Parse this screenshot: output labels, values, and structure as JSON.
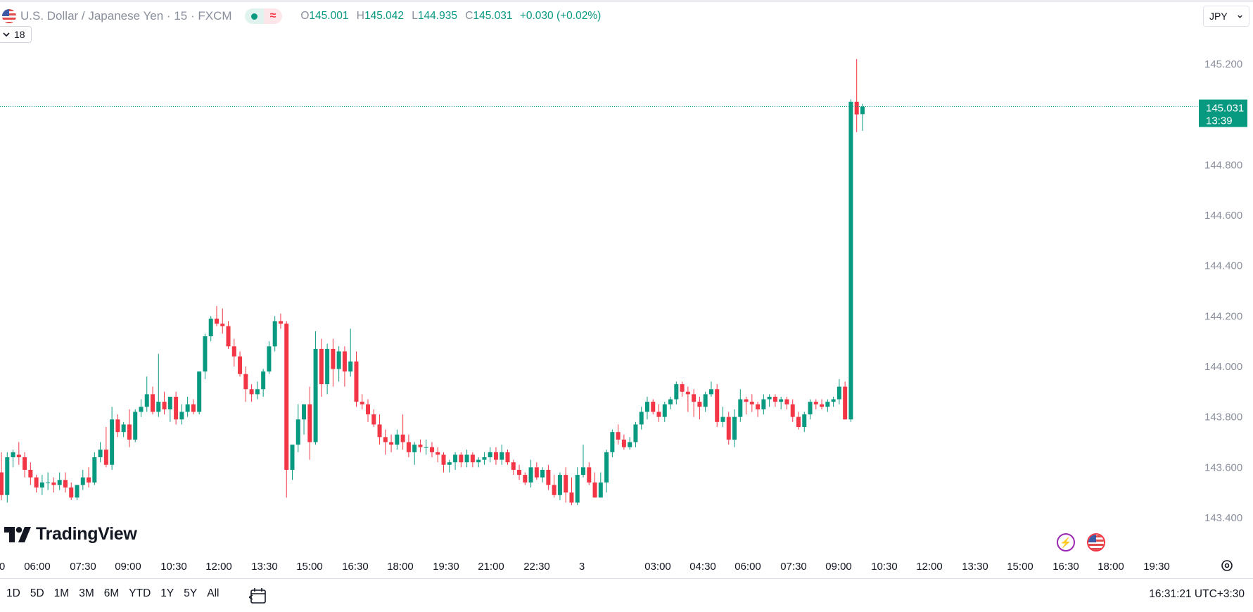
{
  "legend": {
    "symbol_name": "U.S. Dollar / Japanese Yen",
    "separator": "·",
    "interval": "15",
    "exchange": "FXCM",
    "market_status_wave": "≈",
    "open_key": "O",
    "open": "145.001",
    "high_key": "H",
    "high": "145.042",
    "low_key": "L",
    "low": "144.935",
    "close_key": "C",
    "close": "145.031",
    "change": "+0.030 (+0.02%)"
  },
  "indicators_toggle": {
    "count": "18"
  },
  "currency_select": {
    "value": "JPY"
  },
  "price_marker": {
    "price": "145.031",
    "countdown": "13:39"
  },
  "logo": {
    "text": "TradingView"
  },
  "range_buttons": [
    "1D",
    "5D",
    "1M",
    "3M",
    "6M",
    "YTD",
    "1Y",
    "5Y",
    "All"
  ],
  "clock": "16:31:21 UTC+3:30",
  "colors": {
    "up": "#089981",
    "down": "#f23645",
    "grid_text": "#8a8f9c",
    "text": "#131722"
  },
  "chart_data": {
    "type": "candlestick",
    "symbol": "USDJPY",
    "interval": "15",
    "ylim": [
      143.3,
      145.3
    ],
    "yticks": [
      "145.200",
      "144.800",
      "144.600",
      "144.400",
      "144.200",
      "144.000",
      "143.800",
      "143.600",
      "143.400"
    ],
    "xticks": [
      "0",
      "06:00",
      "07:30",
      "09:00",
      "10:30",
      "12:00",
      "13:30",
      "15:00",
      "16:30",
      "18:00",
      "19:30",
      "21:00",
      "22:30",
      "3",
      "03:00",
      "04:30",
      "06:00",
      "07:30",
      "09:00",
      "10:30",
      "12:00",
      "13:30",
      "15:00",
      "16:30",
      "18:00",
      "19:30"
    ],
    "last_price": 145.031,
    "candles": [
      [
        143.58,
        143.66,
        143.47,
        143.49
      ],
      [
        143.49,
        143.66,
        143.46,
        143.64
      ],
      [
        143.64,
        143.67,
        143.6,
        143.66
      ],
      [
        143.65,
        143.7,
        143.61,
        143.64
      ],
      [
        143.64,
        143.66,
        143.56,
        143.59
      ],
      [
        143.59,
        143.62,
        143.53,
        143.56
      ],
      [
        143.56,
        143.57,
        143.5,
        143.52
      ],
      [
        143.52,
        143.57,
        143.49,
        143.54
      ],
      [
        143.54,
        143.58,
        143.51,
        143.54
      ],
      [
        143.54,
        143.56,
        143.5,
        143.53
      ],
      [
        143.53,
        143.58,
        143.51,
        143.55
      ],
      [
        143.55,
        143.58,
        143.5,
        143.52
      ],
      [
        143.52,
        143.54,
        143.47,
        143.48
      ],
      [
        143.48,
        143.53,
        143.47,
        143.53
      ],
      [
        143.53,
        143.59,
        143.51,
        143.56
      ],
      [
        143.56,
        143.6,
        143.52,
        143.54
      ],
      [
        143.54,
        143.66,
        143.53,
        143.64
      ],
      [
        143.64,
        143.7,
        143.62,
        143.67
      ],
      [
        143.67,
        143.76,
        143.6,
        143.61
      ],
      [
        143.61,
        143.84,
        143.59,
        143.79
      ],
      [
        143.79,
        143.81,
        143.72,
        143.74
      ],
      [
        143.74,
        143.78,
        143.72,
        143.77
      ],
      [
        143.77,
        143.83,
        143.68,
        143.71
      ],
      [
        143.71,
        143.83,
        143.7,
        143.82
      ],
      [
        143.82,
        143.87,
        143.8,
        143.84
      ],
      [
        143.84,
        143.96,
        143.82,
        143.89
      ],
      [
        143.89,
        143.92,
        143.81,
        143.82
      ],
      [
        143.82,
        144.05,
        143.8,
        143.86
      ],
      [
        143.86,
        143.9,
        143.81,
        143.83
      ],
      [
        143.83,
        143.88,
        143.78,
        143.88
      ],
      [
        143.88,
        143.9,
        143.77,
        143.79
      ],
      [
        143.79,
        143.85,
        143.77,
        143.82
      ],
      [
        143.82,
        143.88,
        143.8,
        143.85
      ],
      [
        143.85,
        143.87,
        143.81,
        143.82
      ],
      [
        143.82,
        143.98,
        143.81,
        143.98
      ],
      [
        143.98,
        144.13,
        143.95,
        144.12
      ],
      [
        144.12,
        144.2,
        144.1,
        144.19
      ],
      [
        144.19,
        144.24,
        144.16,
        144.17
      ],
      [
        144.17,
        144.23,
        144.13,
        144.16
      ],
      [
        144.16,
        144.18,
        144.07,
        144.08
      ],
      [
        144.08,
        144.11,
        144.0,
        144.04
      ],
      [
        144.04,
        144.06,
        143.96,
        143.97
      ],
      [
        143.97,
        144.0,
        143.86,
        143.91
      ],
      [
        143.91,
        143.93,
        143.86,
        143.89
      ],
      [
        143.89,
        143.94,
        143.87,
        143.91
      ],
      [
        143.91,
        143.99,
        143.88,
        143.98
      ],
      [
        143.98,
        144.1,
        143.97,
        144.08
      ],
      [
        144.08,
        144.2,
        144.06,
        144.18
      ],
      [
        144.18,
        144.21,
        144.15,
        144.17
      ],
      [
        144.17,
        144.18,
        143.48,
        143.59
      ],
      [
        143.59,
        143.69,
        143.55,
        143.69
      ],
      [
        143.69,
        143.85,
        143.66,
        143.79
      ],
      [
        143.79,
        143.85,
        143.73,
        143.85
      ],
      [
        143.85,
        143.92,
        143.63,
        143.7
      ],
      [
        143.7,
        144.14,
        143.69,
        144.07
      ],
      [
        144.07,
        144.11,
        143.88,
        143.93
      ],
      [
        143.93,
        144.09,
        143.89,
        144.07
      ],
      [
        144.07,
        144.11,
        143.92,
        143.99
      ],
      [
        143.99,
        144.08,
        143.94,
        144.06
      ],
      [
        144.06,
        144.08,
        143.92,
        143.98
      ],
      [
        143.98,
        144.15,
        143.96,
        144.02
      ],
      [
        144.02,
        144.06,
        143.84,
        143.86
      ],
      [
        143.86,
        143.89,
        143.83,
        143.85
      ],
      [
        143.85,
        143.87,
        143.78,
        143.81
      ],
      [
        143.81,
        143.83,
        143.76,
        143.77
      ],
      [
        143.77,
        143.81,
        143.69,
        143.72
      ],
      [
        143.72,
        143.75,
        143.65,
        143.7
      ],
      [
        143.7,
        143.73,
        143.66,
        143.69
      ],
      [
        143.69,
        143.75,
        143.67,
        143.73
      ],
      [
        143.73,
        143.81,
        143.67,
        143.7
      ],
      [
        143.7,
        143.73,
        143.64,
        143.66
      ],
      [
        143.66,
        143.7,
        143.61,
        143.69
      ],
      [
        143.69,
        143.71,
        143.66,
        143.68
      ],
      [
        143.68,
        143.71,
        143.65,
        143.68
      ],
      [
        143.68,
        143.7,
        143.64,
        143.66
      ],
      [
        143.66,
        143.68,
        143.62,
        143.65
      ],
      [
        143.65,
        143.66,
        143.58,
        143.61
      ],
      [
        143.61,
        143.63,
        143.58,
        143.62
      ],
      [
        143.62,
        143.66,
        143.59,
        143.65
      ],
      [
        143.65,
        143.66,
        143.6,
        143.62
      ],
      [
        143.62,
        143.67,
        143.6,
        143.65
      ],
      [
        143.65,
        143.66,
        143.6,
        143.62
      ],
      [
        143.62,
        143.64,
        143.6,
        143.63
      ],
      [
        143.63,
        143.66,
        143.61,
        143.64
      ],
      [
        143.64,
        143.68,
        143.62,
        143.66
      ],
      [
        143.66,
        143.68,
        143.61,
        143.63
      ],
      [
        143.63,
        143.69,
        143.61,
        143.66
      ],
      [
        143.66,
        143.67,
        143.61,
        143.62
      ],
      [
        143.62,
        143.63,
        143.57,
        143.59
      ],
      [
        143.59,
        143.61,
        143.55,
        143.57
      ],
      [
        143.57,
        143.58,
        143.53,
        143.54
      ],
      [
        143.54,
        143.63,
        143.52,
        143.6
      ],
      [
        143.6,
        143.62,
        143.55,
        143.56
      ],
      [
        143.56,
        143.6,
        143.54,
        143.59
      ],
      [
        143.59,
        143.61,
        143.51,
        143.53
      ],
      [
        143.53,
        143.57,
        143.48,
        143.49
      ],
      [
        143.49,
        143.58,
        143.47,
        143.57
      ],
      [
        143.57,
        143.6,
        143.46,
        143.5
      ],
      [
        143.5,
        143.56,
        143.45,
        143.46
      ],
      [
        143.46,
        143.6,
        143.45,
        143.57
      ],
      [
        143.57,
        143.69,
        143.56,
        143.6
      ],
      [
        143.6,
        143.62,
        143.53,
        143.54
      ],
      [
        143.54,
        143.58,
        143.48,
        143.48
      ],
      [
        143.48,
        143.58,
        143.48,
        143.54
      ],
      [
        143.54,
        143.67,
        143.5,
        143.66
      ],
      [
        143.66,
        143.75,
        143.64,
        143.74
      ],
      [
        143.74,
        143.77,
        143.69,
        143.71
      ],
      [
        143.71,
        143.73,
        143.67,
        143.68
      ],
      [
        143.68,
        143.72,
        143.67,
        143.7
      ],
      [
        143.7,
        143.78,
        143.68,
        143.77
      ],
      [
        143.77,
        143.84,
        143.75,
        143.82
      ],
      [
        143.82,
        143.88,
        143.79,
        143.86
      ],
      [
        143.86,
        143.87,
        143.81,
        143.82
      ],
      [
        143.82,
        143.85,
        143.78,
        143.8
      ],
      [
        143.8,
        143.86,
        143.78,
        143.85
      ],
      [
        143.85,
        143.88,
        143.83,
        143.87
      ],
      [
        143.87,
        143.94,
        143.85,
        143.93
      ],
      [
        143.93,
        143.94,
        143.88,
        143.9
      ],
      [
        143.9,
        143.92,
        143.82,
        143.89
      ],
      [
        143.89,
        143.91,
        143.8,
        143.86
      ],
      [
        143.86,
        143.88,
        143.79,
        143.84
      ],
      [
        143.84,
        143.9,
        143.82,
        143.89
      ],
      [
        143.89,
        143.94,
        143.88,
        143.91
      ],
      [
        143.91,
        143.93,
        143.76,
        143.78
      ],
      [
        143.78,
        143.84,
        143.76,
        143.8
      ],
      [
        143.8,
        143.82,
        143.69,
        143.71
      ],
      [
        143.71,
        143.83,
        143.68,
        143.8
      ],
      [
        143.8,
        143.91,
        143.78,
        143.87
      ],
      [
        143.87,
        143.88,
        143.81,
        143.86
      ],
      [
        143.86,
        143.89,
        143.82,
        143.85
      ],
      [
        143.85,
        143.86,
        143.8,
        143.83
      ],
      [
        143.83,
        143.89,
        143.81,
        143.87
      ],
      [
        143.87,
        143.89,
        143.84,
        143.88
      ],
      [
        143.88,
        143.89,
        143.84,
        143.86
      ],
      [
        143.86,
        143.88,
        143.83,
        143.87
      ],
      [
        143.87,
        143.88,
        143.83,
        143.85
      ],
      [
        143.85,
        143.87,
        143.78,
        143.8
      ],
      [
        143.8,
        143.82,
        143.75,
        143.76
      ],
      [
        143.76,
        143.82,
        143.74,
        143.81
      ],
      [
        143.81,
        143.87,
        143.79,
        143.86
      ],
      [
        143.86,
        143.87,
        143.83,
        143.85
      ],
      [
        143.85,
        143.87,
        143.83,
        143.84
      ],
      [
        143.84,
        143.87,
        143.82,
        143.86
      ],
      [
        143.86,
        143.88,
        143.84,
        143.87
      ],
      [
        143.87,
        143.95,
        143.85,
        143.92
      ],
      [
        143.92,
        143.94,
        143.79,
        143.79
      ],
      [
        143.79,
        145.06,
        143.78,
        145.05
      ],
      [
        145.05,
        145.22,
        144.93,
        145.0
      ],
      [
        145.001,
        145.042,
        144.935,
        145.031
      ]
    ]
  }
}
